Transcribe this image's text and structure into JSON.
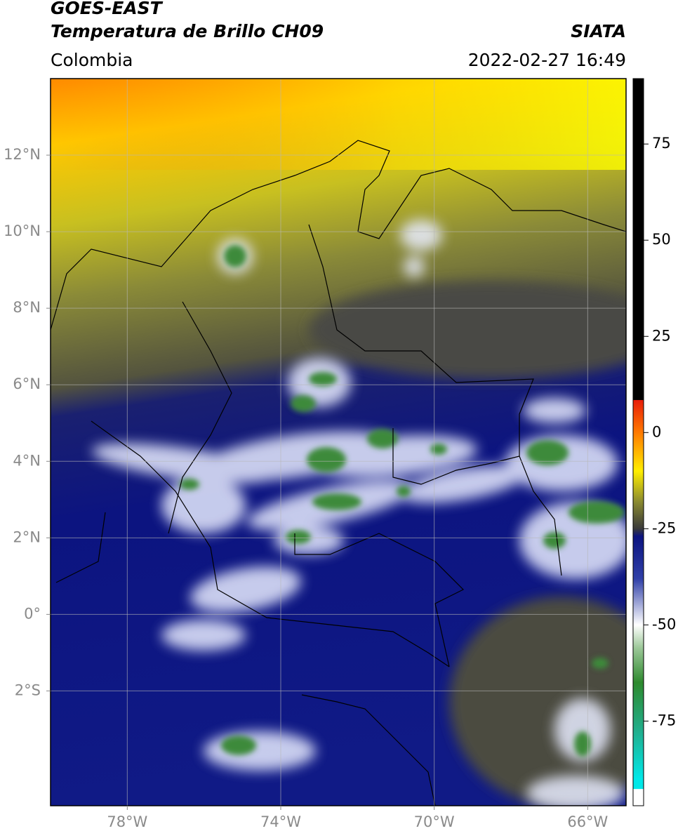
{
  "header": {
    "title_line1": "GOES-EAST",
    "title_line2": "Temperatura de Brillo CH09",
    "region": "Colombia",
    "source": "SIATA",
    "datetime": "2022-02-27 16:49"
  },
  "map": {
    "lonlim": [
      -80,
      -65
    ],
    "latlim": [
      -5,
      14
    ],
    "lonticks": [
      {
        "value": -78,
        "label": "78°W"
      },
      {
        "value": -74,
        "label": "74°W"
      },
      {
        "value": -70,
        "label": "70°W"
      },
      {
        "value": -66,
        "label": "66°W"
      }
    ],
    "latticks": [
      {
        "value": 12,
        "label": "12°N"
      },
      {
        "value": 10,
        "label": "10°N"
      },
      {
        "value": 8,
        "label": "8°N"
      },
      {
        "value": 6,
        "label": "6°N"
      },
      {
        "value": 4,
        "label": "4°N"
      },
      {
        "value": 2,
        "label": "2°N"
      },
      {
        "value": 0,
        "label": "0°"
      },
      {
        "value": -2,
        "label": "2°S"
      }
    ],
    "grid": true
  },
  "colorbar": {
    "lim": [
      -97,
      92
    ],
    "ticks": [
      75,
      50,
      25,
      0,
      -25,
      -50,
      -75
    ],
    "colormap": [
      {
        "value": 92,
        "color": "#000000"
      },
      {
        "value": 8.5,
        "color": "#000000"
      },
      {
        "value": 8.4,
        "color": "#e81e0a"
      },
      {
        "value": 0,
        "color": "#ff7a00"
      },
      {
        "value": -10,
        "color": "#ffee00"
      },
      {
        "value": -18,
        "color": "#8a8a30"
      },
      {
        "value": -25,
        "color": "#3a3a3a"
      },
      {
        "value": -27,
        "color": "#0c1480"
      },
      {
        "value": -38,
        "color": "#3040a8"
      },
      {
        "value": -50,
        "color": "#ffffff"
      },
      {
        "value": -56,
        "color": "#9cc898"
      },
      {
        "value": -65,
        "color": "#2e8a2e"
      },
      {
        "value": -78,
        "color": "#20b090"
      },
      {
        "value": -90,
        "color": "#00e8e8"
      },
      {
        "value": -92.6,
        "color": "#00e8e8"
      },
      {
        "value": -92.7,
        "color": "#ffffff"
      },
      {
        "value": -97,
        "color": "#ffffff"
      }
    ]
  }
}
